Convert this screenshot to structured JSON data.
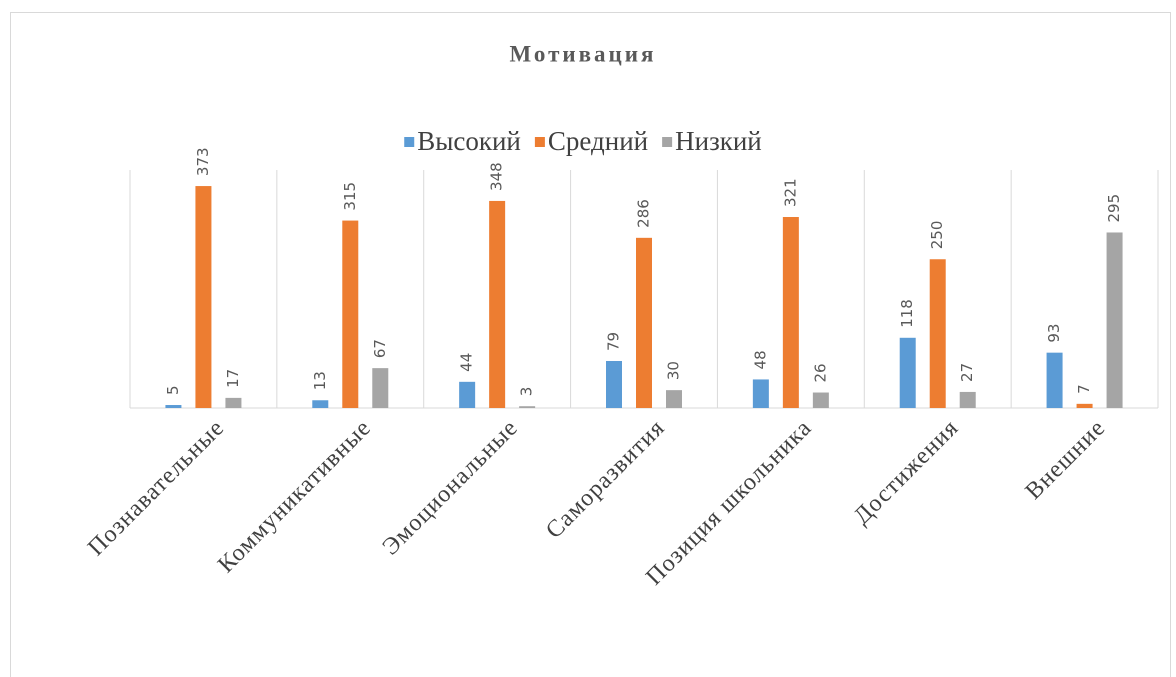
{
  "chart_data": {
    "type": "bar",
    "title": "Мотивация",
    "categories": [
      "Познавательные",
      "Коммуникативные",
      "Эмоциональные",
      "Саморазвития",
      "Позиция школьника",
      "Достижения",
      "Внешние"
    ],
    "series": [
      {
        "name": "Высокий",
        "color": "#5b9bd5",
        "values": [
          5,
          13,
          44,
          79,
          48,
          118,
          93
        ]
      },
      {
        "name": "Средний",
        "color": "#ed7d31",
        "values": [
          373,
          315,
          348,
          286,
          321,
          250,
          7
        ]
      },
      {
        "name": "Низкий",
        "color": "#a5a5a5",
        "values": [
          17,
          67,
          3,
          30,
          26,
          27,
          295
        ]
      }
    ],
    "ylim": [
      0,
      400
    ],
    "legend": "top"
  }
}
